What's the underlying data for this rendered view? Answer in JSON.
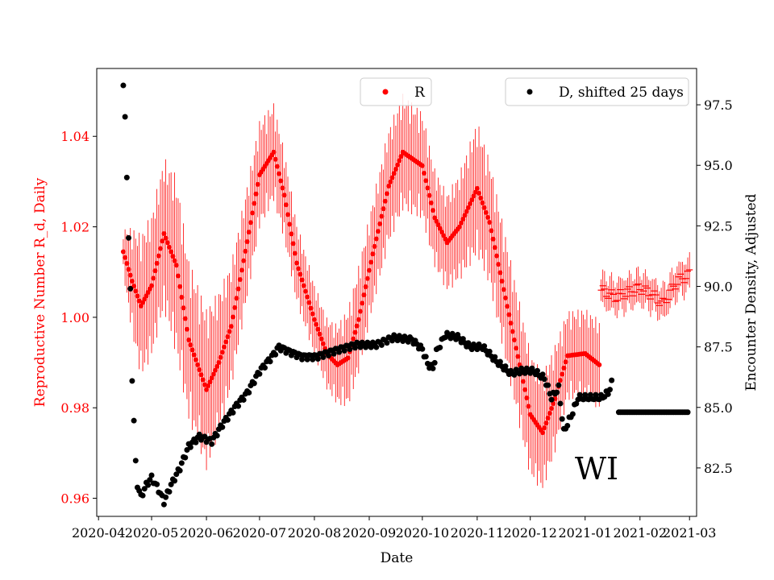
{
  "chart_data": {
    "type": "scatter",
    "state_label": "WI",
    "xlabel": "Date",
    "ylabel_left": "Reproductive Number R_d, Daily",
    "ylabel_right": "Encounter Density, Adjusted",
    "x_ticks": [
      "2020-04",
      "2020-05",
      "2020-06",
      "2020-07",
      "2020-08",
      "2020-09",
      "2020-10",
      "2020-11",
      "2020-12",
      "2021-01",
      "2021-02",
      "2021-03"
    ],
    "x_range": [
      "2020-03-31",
      "2021-03-05"
    ],
    "y_left_ticks": [
      "0.96",
      "0.98",
      "1.00",
      "1.02",
      "1.04"
    ],
    "y_left_range": [
      0.956,
      1.055
    ],
    "y_right_ticks": [
      "82.5",
      "85.0",
      "87.5",
      "90.0",
      "92.5",
      "95.0",
      "97.5"
    ],
    "y_right_range": [
      80.5,
      99.0
    ],
    "colors": {
      "R": "#ff0000",
      "D": "#000000",
      "left_axis": "#ff0000"
    },
    "legend": [
      {
        "label": "R",
        "color": "#ff0000",
        "placement": "top-center"
      },
      {
        "label": "D, shifted 25 days",
        "color": "#000000",
        "placement": "top-right"
      }
    ],
    "series": [
      {
        "name": "R",
        "axis": "left",
        "marker": "dot",
        "error_bars": true,
        "keyframes_date": [
          "2020-04-15",
          "2020-04-20",
          "2020-04-25",
          "2020-05-01",
          "2020-05-08",
          "2020-05-15",
          "2020-05-22",
          "2020-06-01",
          "2020-06-08",
          "2020-06-15",
          "2020-06-22",
          "2020-07-01",
          "2020-07-09",
          "2020-07-15",
          "2020-07-22",
          "2020-08-01",
          "2020-08-08",
          "2020-08-14",
          "2020-08-20",
          "2020-08-26",
          "2020-09-03",
          "2020-09-12",
          "2020-09-20",
          "2020-10-01",
          "2020-10-08",
          "2020-10-15",
          "2020-10-22",
          "2020-11-01",
          "2020-11-08",
          "2020-11-15",
          "2020-11-22",
          "2020-12-01",
          "2020-12-08",
          "2020-12-15",
          "2020-12-22",
          "2021-01-01",
          "2021-01-09"
        ],
        "keyframes_value": [
          1.0145,
          1.008,
          1.0025,
          1.007,
          1.0185,
          1.0115,
          0.995,
          0.984,
          0.99,
          0.998,
          1.0125,
          1.0315,
          1.0365,
          1.027,
          1.012,
          0.9995,
          0.992,
          0.9895,
          0.991,
          0.9995,
          1.014,
          1.029,
          1.0365,
          1.0335,
          1.022,
          1.0165,
          1.02,
          1.0285,
          1.021,
          1.008,
          0.995,
          0.9785,
          0.9745,
          0.982,
          0.9915,
          0.992,
          0.9895
        ],
        "error_halfwidth_keyframes": [
          0.005,
          0.012,
          0.016,
          0.016,
          0.017,
          0.02,
          0.018,
          0.018,
          0.016,
          0.014,
          0.013,
          0.012,
          0.011,
          0.01,
          0.009,
          0.008,
          0.008,
          0.009,
          0.011,
          0.012,
          0.012,
          0.013,
          0.013,
          0.012,
          0.011,
          0.011,
          0.012,
          0.015,
          0.014,
          0.014,
          0.014,
          0.014,
          0.013,
          0.012,
          0.01,
          0.01,
          0.01
        ],
        "tail_keyframes_date": [
          "2021-01-10",
          "2021-01-18",
          "2021-02-01",
          "2021-02-08",
          "2021-02-14",
          "2021-02-22",
          "2021-03-01"
        ],
        "tail_keyframes_value": [
          1.006,
          1.0045,
          1.0065,
          1.005,
          1.003,
          1.008,
          1.0095
        ],
        "tail_error_halfwidth": 0.004
      },
      {
        "name": "D, shifted 25 days",
        "axis": "right",
        "marker": "dot",
        "keyframes_date": [
          "2020-04-15",
          "2020-04-16",
          "2020-04-17",
          "2020-04-18",
          "2020-04-19",
          "2020-04-20",
          "2020-04-22",
          "2020-04-23",
          "2020-04-25",
          "2020-04-28",
          "2020-05-01",
          "2020-05-05",
          "2020-05-08",
          "2020-05-12",
          "2020-05-17",
          "2020-05-22",
          "2020-05-28",
          "2020-06-04",
          "2020-06-10",
          "2020-06-17",
          "2020-06-24",
          "2020-07-01",
          "2020-07-08",
          "2020-07-12",
          "2020-07-18",
          "2020-07-25",
          "2020-08-02",
          "2020-08-15",
          "2020-08-25",
          "2020-09-05",
          "2020-09-15",
          "2020-09-25",
          "2020-10-01",
          "2020-10-04",
          "2020-10-07",
          "2020-10-09",
          "2020-10-14",
          "2020-10-21",
          "2020-10-28",
          "2020-11-04",
          "2020-11-12",
          "2020-11-20",
          "2020-11-26",
          "2020-12-03",
          "2020-12-09",
          "2020-12-13",
          "2020-12-17",
          "2020-12-20",
          "2020-12-25",
          "2020-12-28",
          "2021-01-03",
          "2021-01-10",
          "2021-01-14",
          "2021-01-16"
        ],
        "keyframes_value": [
          98.3,
          96.9,
          94.6,
          92.0,
          89.8,
          86.2,
          82.7,
          81.8,
          81.3,
          81.8,
          82.1,
          81.6,
          81.1,
          81.8,
          82.5,
          83.4,
          83.8,
          83.6,
          84.3,
          85.0,
          85.6,
          86.5,
          87.1,
          87.5,
          87.3,
          87.1,
          87.1,
          87.4,
          87.6,
          87.6,
          87.9,
          87.8,
          87.4,
          86.8,
          86.6,
          87.3,
          88.0,
          87.9,
          87.5,
          87.5,
          86.9,
          86.4,
          86.5,
          86.5,
          86.2,
          85.4,
          85.8,
          84.0,
          84.8,
          85.4,
          85.4,
          85.4,
          85.6,
          86.0
        ],
        "flat_segment_date": [
          "2021-01-20",
          "2021-02-28"
        ],
        "flat_segment_value": 84.8
      }
    ]
  }
}
